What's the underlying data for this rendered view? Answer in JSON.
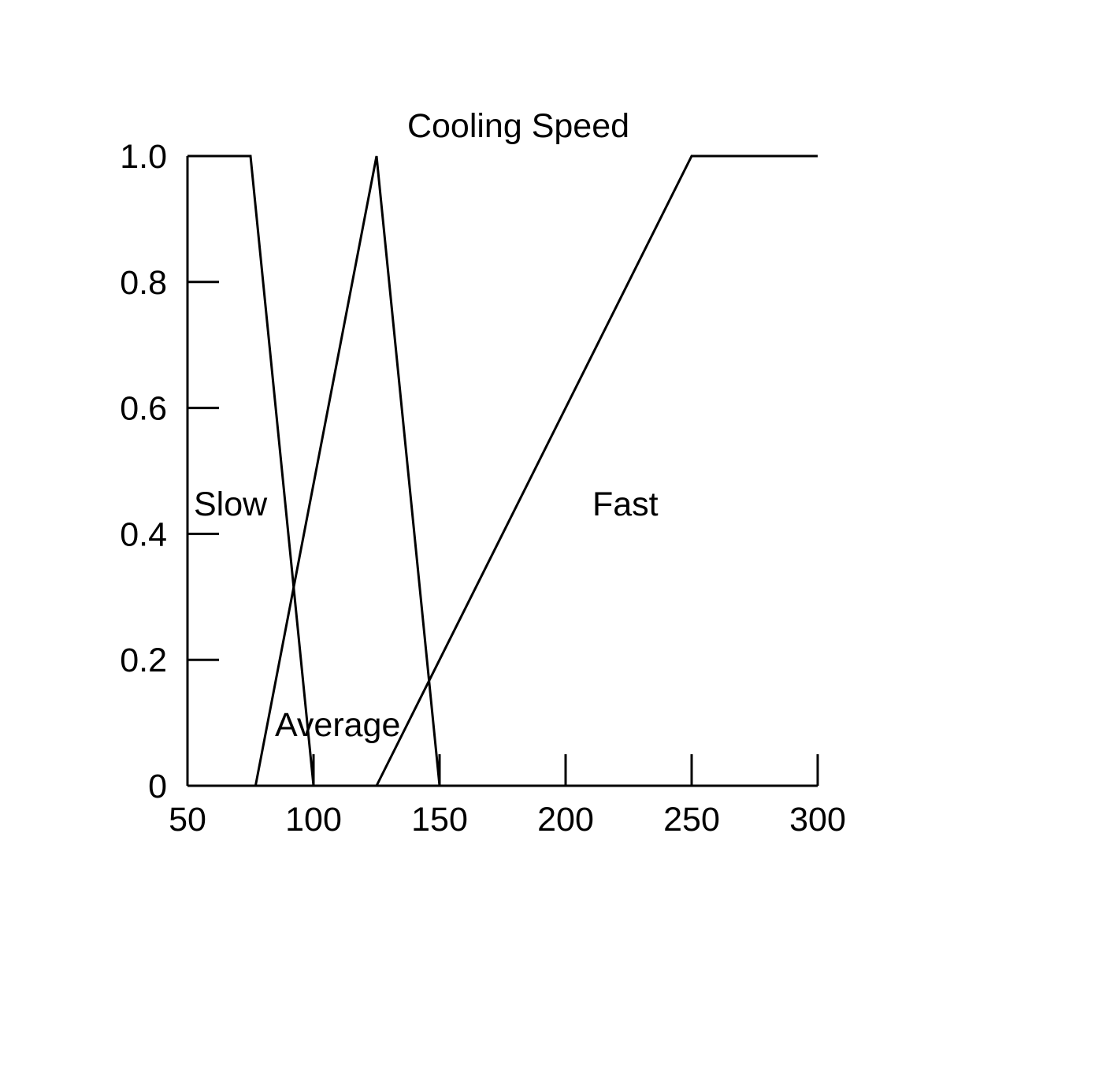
{
  "chart_data": {
    "type": "line",
    "title": "Cooling Speed",
    "xlabel": "",
    "ylabel": "",
    "xlim": [
      50,
      300
    ],
    "ylim": [
      0,
      1
    ],
    "grid": false,
    "x_ticks": [
      50,
      100,
      150,
      200,
      250,
      300
    ],
    "x_tick_labels": [
      "50",
      "100",
      "150",
      "200",
      "250",
      "300"
    ],
    "y_ticks": [
      0,
      0.2,
      0.4,
      0.6,
      0.8,
      1.0
    ],
    "y_tick_labels": [
      "0",
      "0.2",
      "0.4",
      "0.6",
      "0.8",
      "1.0"
    ],
    "series": [
      {
        "name": "Slow",
        "x": [
          50,
          75,
          100
        ],
        "y": [
          1,
          1,
          0
        ]
      },
      {
        "name": "Average",
        "x": [
          77,
          125,
          150
        ],
        "y": [
          0,
          1,
          0
        ]
      },
      {
        "name": "Fast",
        "x": [
          125,
          250,
          300
        ],
        "y": [
          0,
          1,
          1
        ]
      }
    ],
    "line_color": "#000000"
  }
}
